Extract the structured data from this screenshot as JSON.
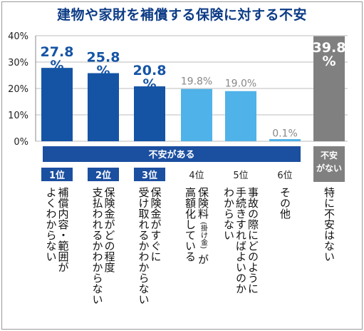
{
  "title": "建物や家財を補償する保険に対する不安",
  "colors": {
    "dark": "#1554a5",
    "light": "#4fb2e8",
    "gray": "#808080",
    "title": "#0d3c86",
    "band": "#1b4fa0"
  },
  "anxious_label": "不安がある",
  "no_anxiety_label": [
    "不安",
    "がない"
  ],
  "chart_data": {
    "type": "bar",
    "ylim": [
      0,
      40
    ],
    "yticks": [
      "0%",
      "10%",
      "20%",
      "30%",
      "40%"
    ],
    "categories": [
      {
        "rank": "1位",
        "label": [
          "補償内容・範囲が",
          "よくわからない"
        ],
        "value": 27.8,
        "value_text": [
          "27.8",
          "%"
        ],
        "color": "dark"
      },
      {
        "rank": "2位",
        "label": [
          "保険金がどの程度",
          "支払われるかわからない"
        ],
        "value": 25.8,
        "value_text": [
          "25.8",
          "%"
        ],
        "color": "dark"
      },
      {
        "rank": "3位",
        "label": [
          "保険金がすぐに",
          "受け取れるかわからない"
        ],
        "value": 20.8,
        "value_text": [
          "20.8",
          "%"
        ],
        "color": "dark"
      },
      {
        "rank": "4位",
        "label": [
          "保険料",
          "(掛け金)",
          "が",
          "高額化している"
        ],
        "value": 19.8,
        "value_text": [
          "19.8%"
        ],
        "color": "light"
      },
      {
        "rank": "5位",
        "label": [
          "事故の際にどのように",
          "手続きすればよいのか",
          "わからない"
        ],
        "value": 19.0,
        "value_text": [
          "19.0%"
        ],
        "color": "light"
      },
      {
        "rank": "6位",
        "label": [
          "その他"
        ],
        "value": 0.1,
        "value_text": [
          "0.1%"
        ],
        "color": "light"
      },
      {
        "rank": "",
        "label": [
          "特に不安はない"
        ],
        "value": 39.8,
        "value_text": [
          "39.8",
          "%"
        ],
        "color": "gray"
      }
    ]
  }
}
